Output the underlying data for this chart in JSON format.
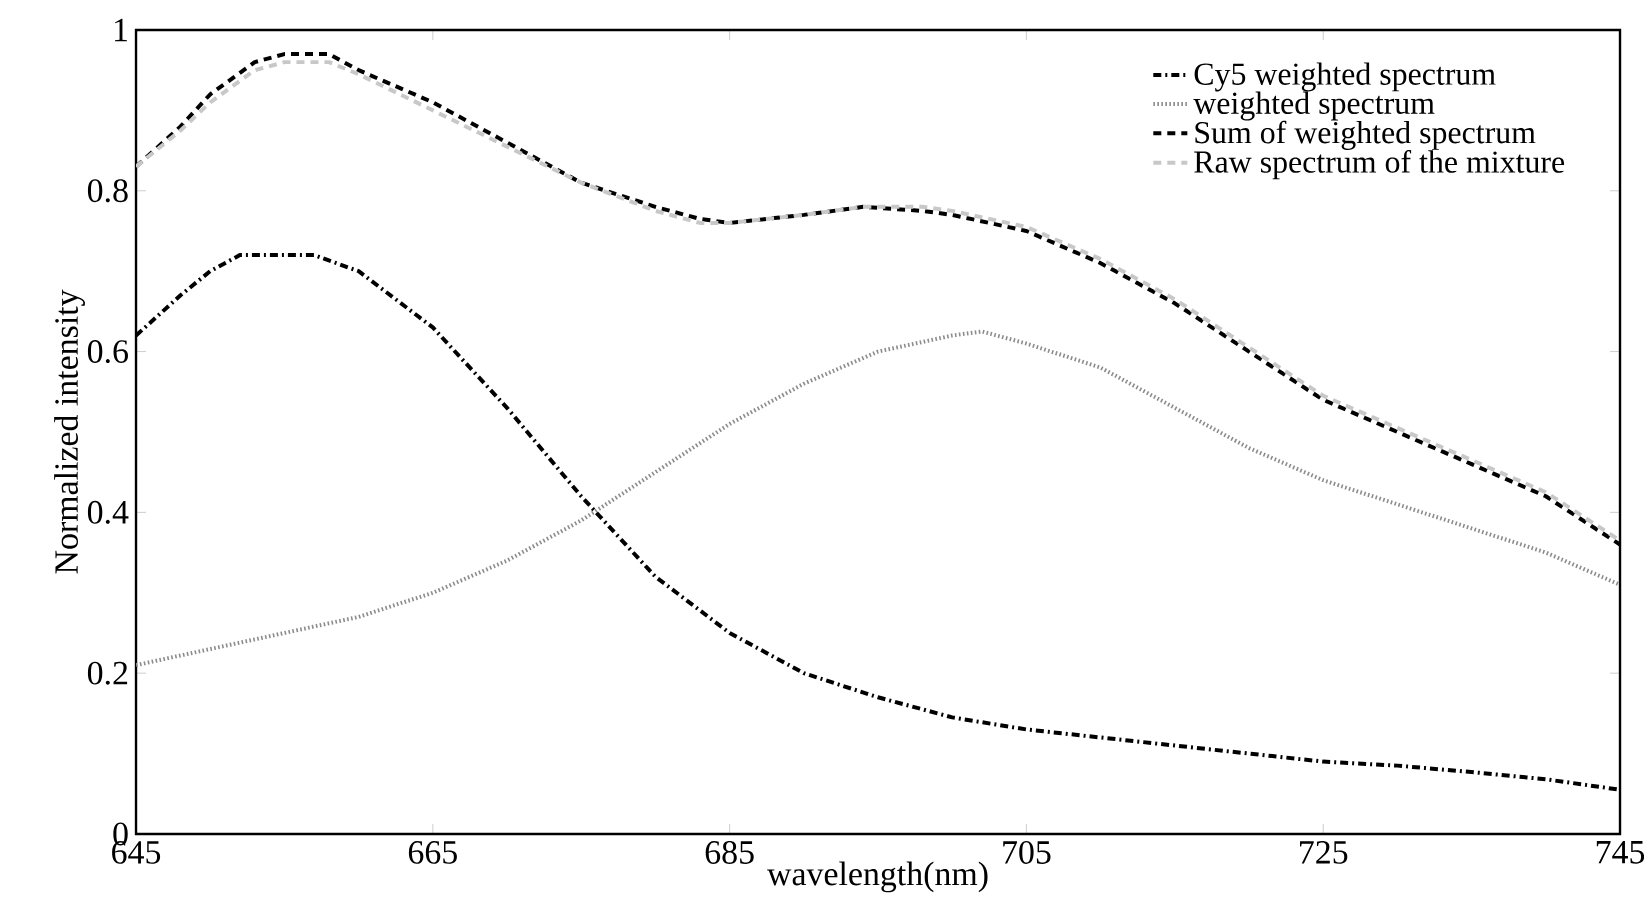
{
  "chart_data": {
    "type": "line",
    "xlabel": "wavelength(nm)",
    "ylabel": "Normalized intensity",
    "xlim": [
      645,
      745
    ],
    "xticks": [
      645,
      665,
      685,
      705,
      725,
      745
    ],
    "ylim": [
      0,
      1
    ],
    "yticks": [
      0,
      0.2,
      0.4,
      0.6,
      0.8,
      1
    ],
    "grid": false,
    "legend": "top right",
    "marker": "none",
    "series": [
      {
        "name": "Cy5 weighted spectrum",
        "color": "#000000",
        "line_style": "dashdot",
        "x": [
          645,
          648,
          650,
          652,
          655,
          657,
          660,
          665,
          670,
          675,
          680,
          685,
          690,
          695,
          700,
          705,
          710,
          715,
          720,
          725,
          730,
          735,
          740,
          745
        ],
        "values": [
          0.62,
          0.67,
          0.7,
          0.72,
          0.72,
          0.72,
          0.7,
          0.63,
          0.53,
          0.42,
          0.32,
          0.25,
          0.2,
          0.17,
          0.145,
          0.13,
          0.12,
          0.11,
          0.1,
          0.09,
          0.085,
          0.077,
          0.068,
          0.055
        ]
      },
      {
        "name": "weighted spectrum",
        "color": "#8c8c8c",
        "line_style": "dotted",
        "x": [
          645,
          650,
          655,
          660,
          665,
          670,
          675,
          680,
          685,
          690,
          695,
          700,
          702,
          705,
          710,
          715,
          720,
          725,
          730,
          735,
          740,
          745
        ],
        "values": [
          0.21,
          0.23,
          0.25,
          0.27,
          0.3,
          0.34,
          0.39,
          0.45,
          0.51,
          0.56,
          0.6,
          0.62,
          0.625,
          0.61,
          0.58,
          0.53,
          0.48,
          0.44,
          0.41,
          0.38,
          0.35,
          0.31
        ]
      },
      {
        "name": "Sum of weighted spectrum",
        "color": "#000000",
        "line_style": "dashed",
        "x": [
          645,
          648,
          650,
          653,
          655,
          658,
          660,
          665,
          670,
          675,
          680,
          683,
          685,
          690,
          694,
          698,
          700,
          705,
          710,
          715,
          720,
          725,
          730,
          735,
          740,
          745
        ],
        "values": [
          0.83,
          0.88,
          0.92,
          0.96,
          0.97,
          0.97,
          0.95,
          0.91,
          0.86,
          0.81,
          0.78,
          0.765,
          0.76,
          0.77,
          0.78,
          0.775,
          0.77,
          0.75,
          0.71,
          0.66,
          0.6,
          0.54,
          0.5,
          0.46,
          0.42,
          0.36
        ]
      },
      {
        "name": "Raw spectrum of the mixture",
        "color": "#c8c8c8",
        "line_style": "dashed",
        "x": [
          645,
          648,
          650,
          653,
          655,
          658,
          660,
          665,
          670,
          675,
          680,
          683,
          685,
          690,
          694,
          698,
          700,
          705,
          710,
          715,
          720,
          725,
          730,
          735,
          740,
          745
        ],
        "values": [
          0.83,
          0.875,
          0.91,
          0.95,
          0.96,
          0.96,
          0.945,
          0.9,
          0.855,
          0.81,
          0.775,
          0.76,
          0.76,
          0.77,
          0.78,
          0.78,
          0.775,
          0.755,
          0.715,
          0.665,
          0.605,
          0.545,
          0.505,
          0.465,
          0.425,
          0.365
        ]
      }
    ]
  }
}
